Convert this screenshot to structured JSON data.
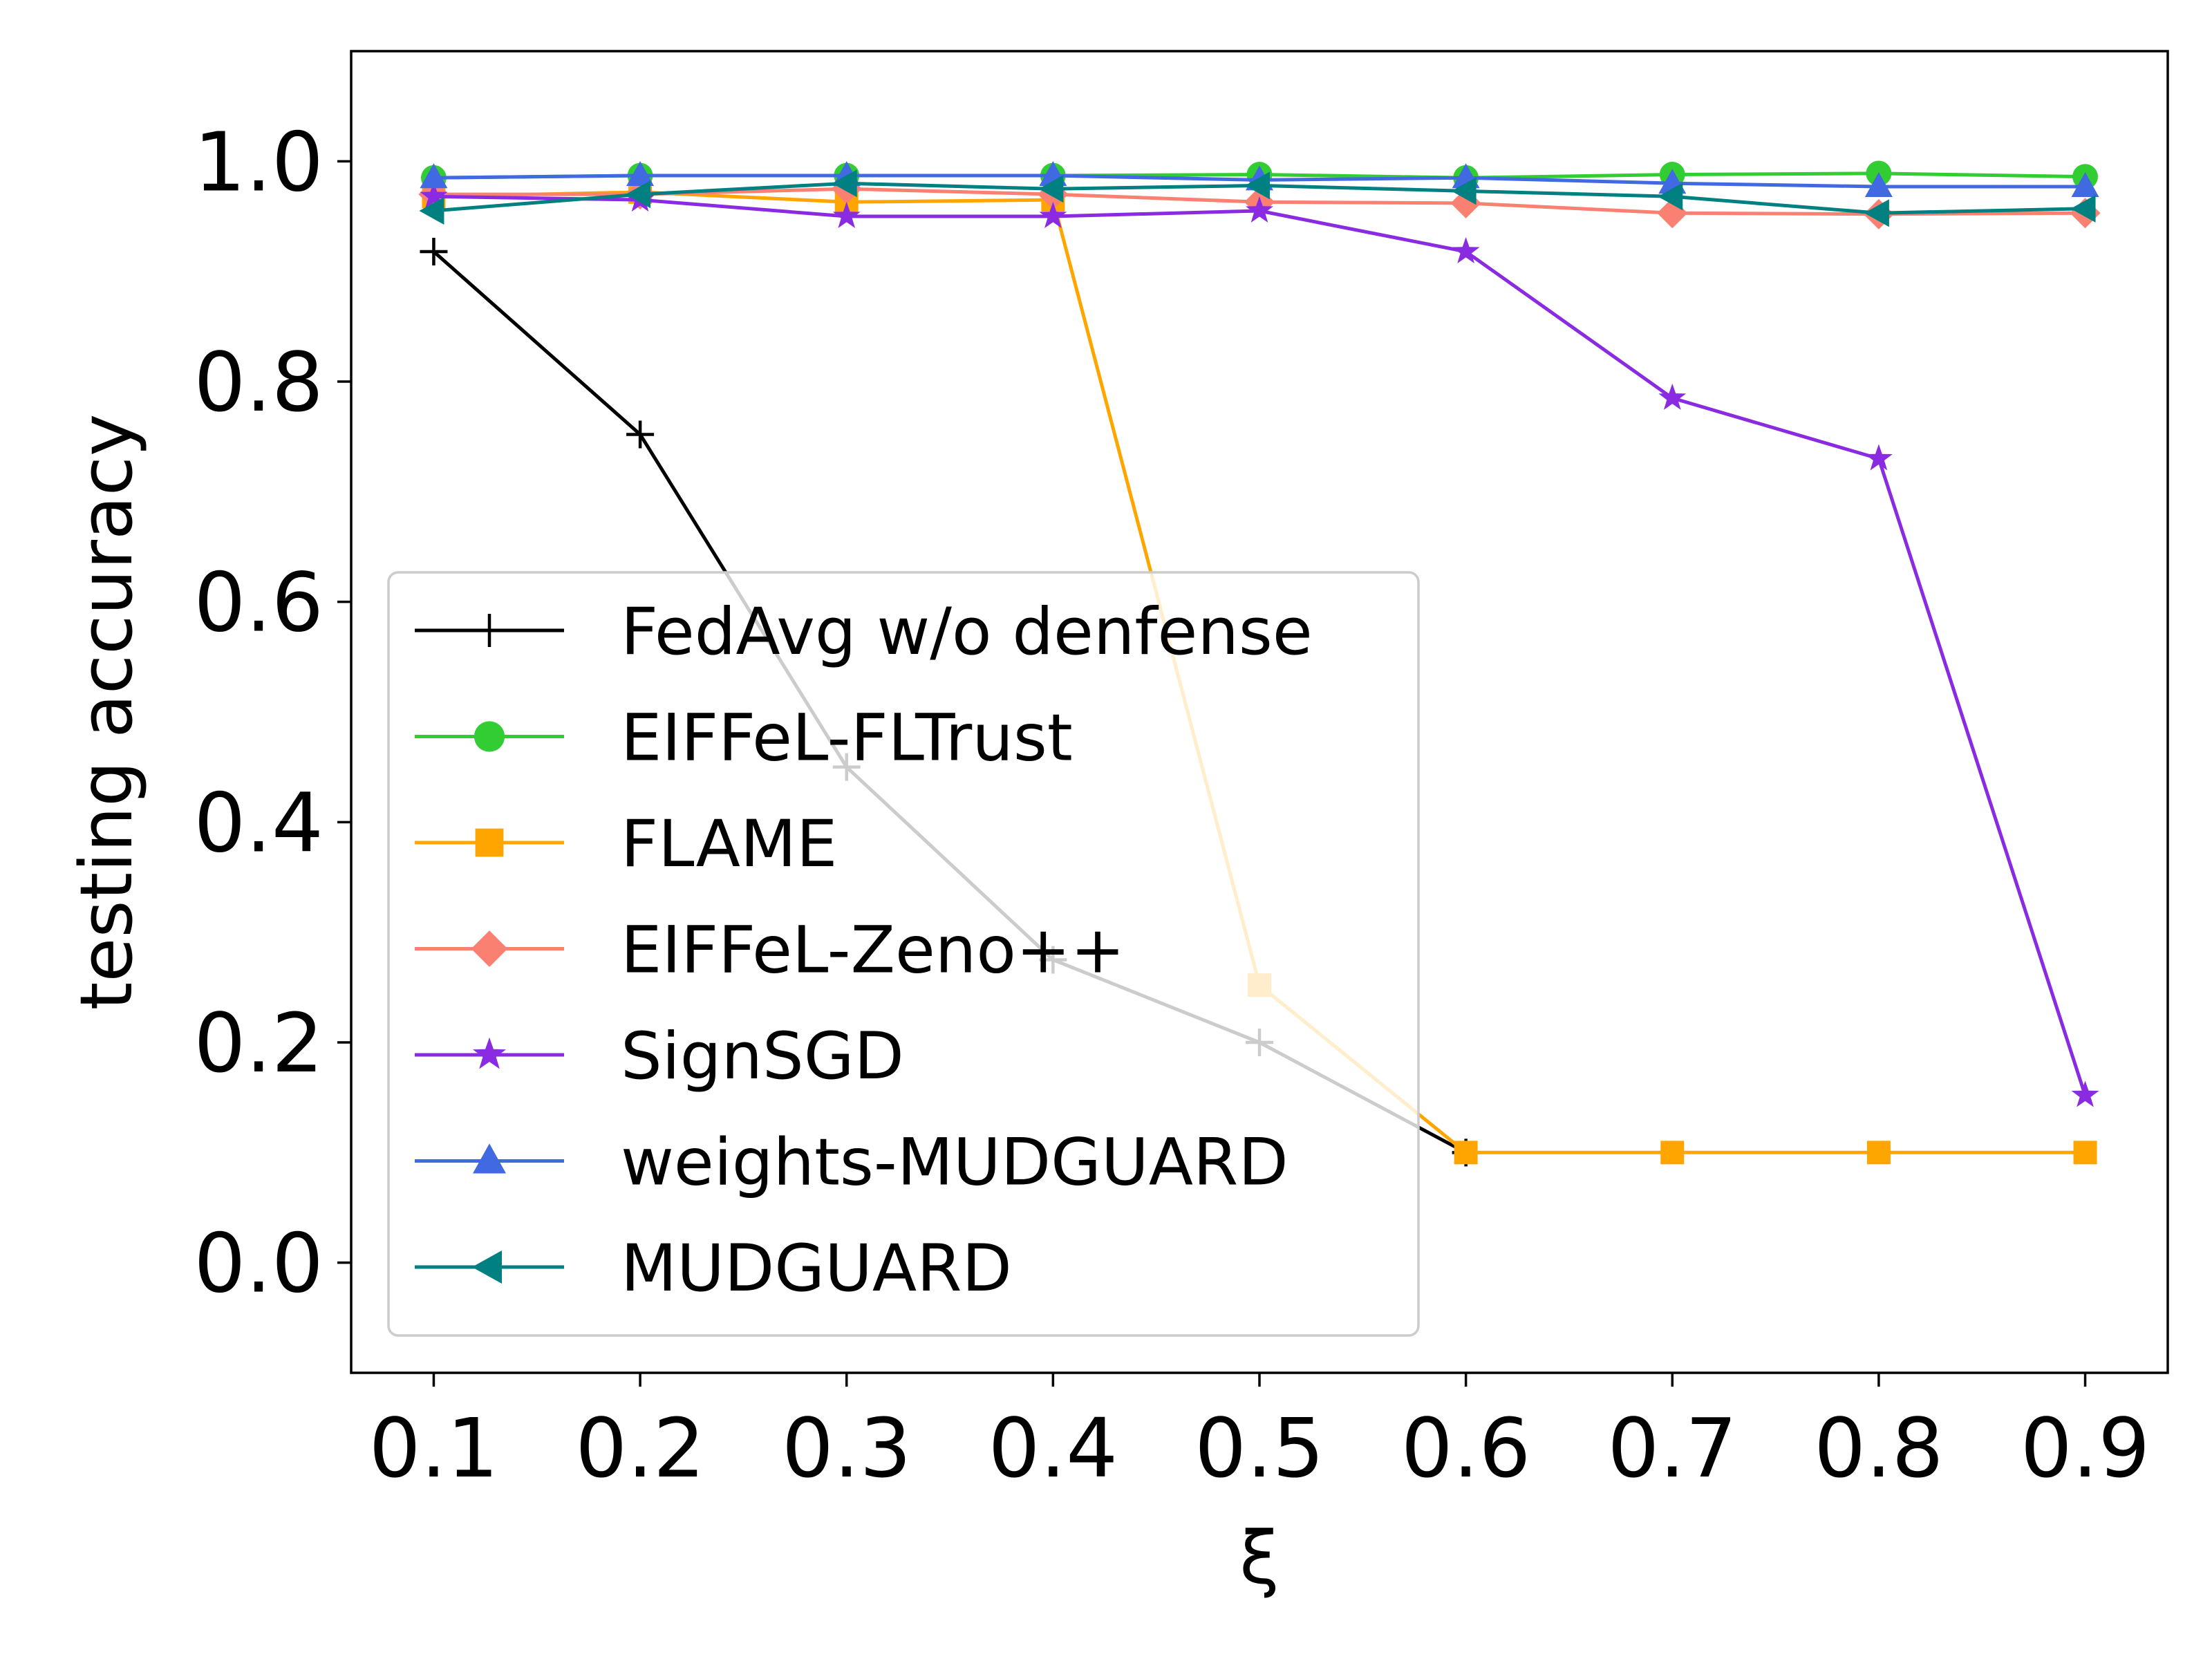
{
  "chart_data": {
    "type": "line",
    "title": "",
    "xlabel": "ξ",
    "ylabel": "testing accuracy",
    "x": [
      0.1,
      0.2,
      0.3,
      0.4,
      0.5,
      0.6,
      0.7,
      0.8,
      0.9
    ],
    "xtick_labels": [
      "0.1",
      "0.2",
      "0.3",
      "0.4",
      "0.5",
      "0.6",
      "0.7",
      "0.8",
      "0.9"
    ],
    "ytick_values": [
      0.0,
      0.2,
      0.4,
      0.6,
      0.8,
      1.0
    ],
    "ytick_labels": [
      "0.0",
      "0.2",
      "0.4",
      "0.6",
      "0.8",
      "1.0"
    ],
    "xlim": [
      0.06,
      0.94
    ],
    "ylim": [
      -0.1,
      1.1
    ],
    "grid": false,
    "legend_position": "lower-left",
    "series": [
      {
        "name": "FedAvg w/o denfense",
        "color": "#000000",
        "marker": "plus",
        "values": [
          0.918,
          0.752,
          0.45,
          0.275,
          0.2,
          0.1,
          null,
          null,
          null
        ]
      },
      {
        "name": "EIFFeL-FLTrust",
        "color": "#32cd32",
        "marker": "circle",
        "values": [
          0.985,
          0.987,
          0.987,
          0.987,
          0.988,
          0.985,
          0.988,
          0.989,
          0.986
        ]
      },
      {
        "name": "FLAME",
        "color": "#ffa500",
        "marker": "square",
        "values": [
          0.968,
          0.972,
          0.963,
          0.965,
          0.252,
          0.1,
          0.1,
          0.1,
          0.1
        ]
      },
      {
        "name": "EIFFeL-Zeno++",
        "color": "#fa8072",
        "marker": "diamond",
        "values": [
          0.97,
          0.97,
          0.975,
          0.97,
          0.963,
          0.962,
          0.953,
          0.952,
          0.953
        ]
      },
      {
        "name": "SignSGD",
        "color": "#8a2be2",
        "marker": "star",
        "values": [
          0.968,
          0.965,
          0.95,
          0.95,
          0.955,
          0.918,
          0.785,
          0.73,
          0.152
        ]
      },
      {
        "name": "weights-MUDGUARD",
        "color": "#4169e1",
        "marker": "triangle-up",
        "values": [
          0.985,
          0.987,
          0.987,
          0.987,
          0.983,
          0.985,
          0.98,
          0.977,
          0.977
        ]
      },
      {
        "name": "MUDGUARD",
        "color": "#008080",
        "marker": "triangle-left",
        "values": [
          0.955,
          0.97,
          0.98,
          0.975,
          0.978,
          0.973,
          0.968,
          0.953,
          0.957
        ]
      }
    ]
  }
}
